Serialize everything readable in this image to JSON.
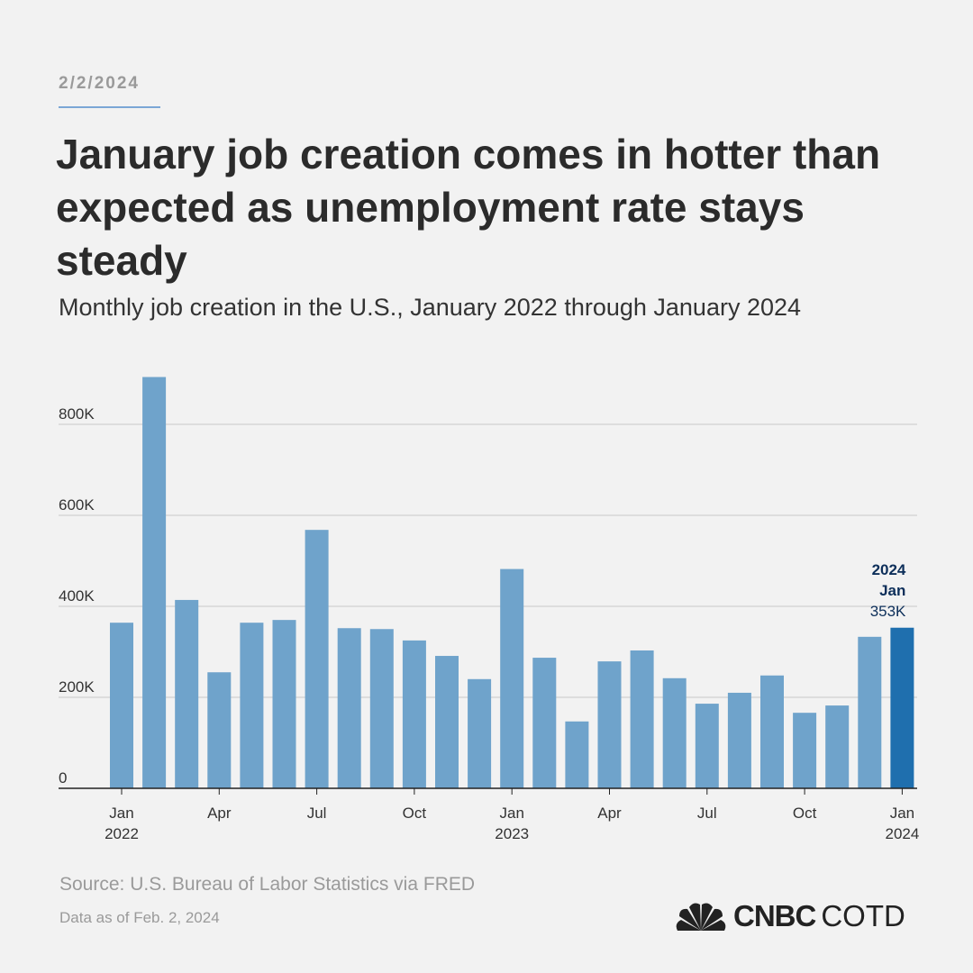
{
  "header": {
    "date": "2/2/2024",
    "title": "January job creation comes in hotter than expected as unemployment rate stays steady",
    "subtitle": "Monthly job creation in the U.S., January 2022 through January 2024"
  },
  "footer": {
    "source": "Source: U.S. Bureau of Labor Statistics via FRED",
    "as_of": "Data as of Feb. 2, 2024",
    "logo_text_bold": "CNBC",
    "logo_text": "COTD"
  },
  "colors": {
    "bar": "#6fa3cb",
    "highlight": "#1f6fae",
    "annotation": "#0d2f5a"
  },
  "chart_data": {
    "type": "bar",
    "categories": [
      "Jan 2022",
      "Feb 2022",
      "Mar 2022",
      "Apr 2022",
      "May 2022",
      "Jun 2022",
      "Jul 2022",
      "Aug 2022",
      "Sep 2022",
      "Oct 2022",
      "Nov 2022",
      "Dec 2022",
      "Jan 2023",
      "Feb 2023",
      "Mar 2023",
      "Apr 2023",
      "May 2023",
      "Jun 2023",
      "Jul 2023",
      "Aug 2023",
      "Sep 2023",
      "Oct 2023",
      "Nov 2023",
      "Dec 2023",
      "Jan 2024"
    ],
    "values": [
      364,
      904,
      414,
      255,
      364,
      370,
      568,
      352,
      350,
      325,
      291,
      240,
      482,
      287,
      147,
      279,
      303,
      242,
      186,
      210,
      248,
      166,
      182,
      333,
      353
    ],
    "unit": "K",
    "ylim": [
      0,
      900
    ],
    "yticks": [
      {
        "v": 0,
        "label": "0"
      },
      {
        "v": 200,
        "label": "200K"
      },
      {
        "v": 400,
        "label": "400K"
      },
      {
        "v": 600,
        "label": "600K"
      },
      {
        "v": 800,
        "label": "800K"
      }
    ],
    "xticks": [
      {
        "i": 0,
        "label": "Jan",
        "sub": "2022"
      },
      {
        "i": 3,
        "label": "Apr",
        "sub": ""
      },
      {
        "i": 6,
        "label": "Jul",
        "sub": ""
      },
      {
        "i": 9,
        "label": "Oct",
        "sub": ""
      },
      {
        "i": 12,
        "label": "Jan",
        "sub": "2023"
      },
      {
        "i": 15,
        "label": "Apr",
        "sub": ""
      },
      {
        "i": 18,
        "label": "Jul",
        "sub": ""
      },
      {
        "i": 21,
        "label": "Oct",
        "sub": ""
      },
      {
        "i": 24,
        "label": "Jan",
        "sub": "2024"
      }
    ],
    "grid": true,
    "annotation": {
      "year": "2024",
      "month": "Jan",
      "value": "353K"
    }
  }
}
